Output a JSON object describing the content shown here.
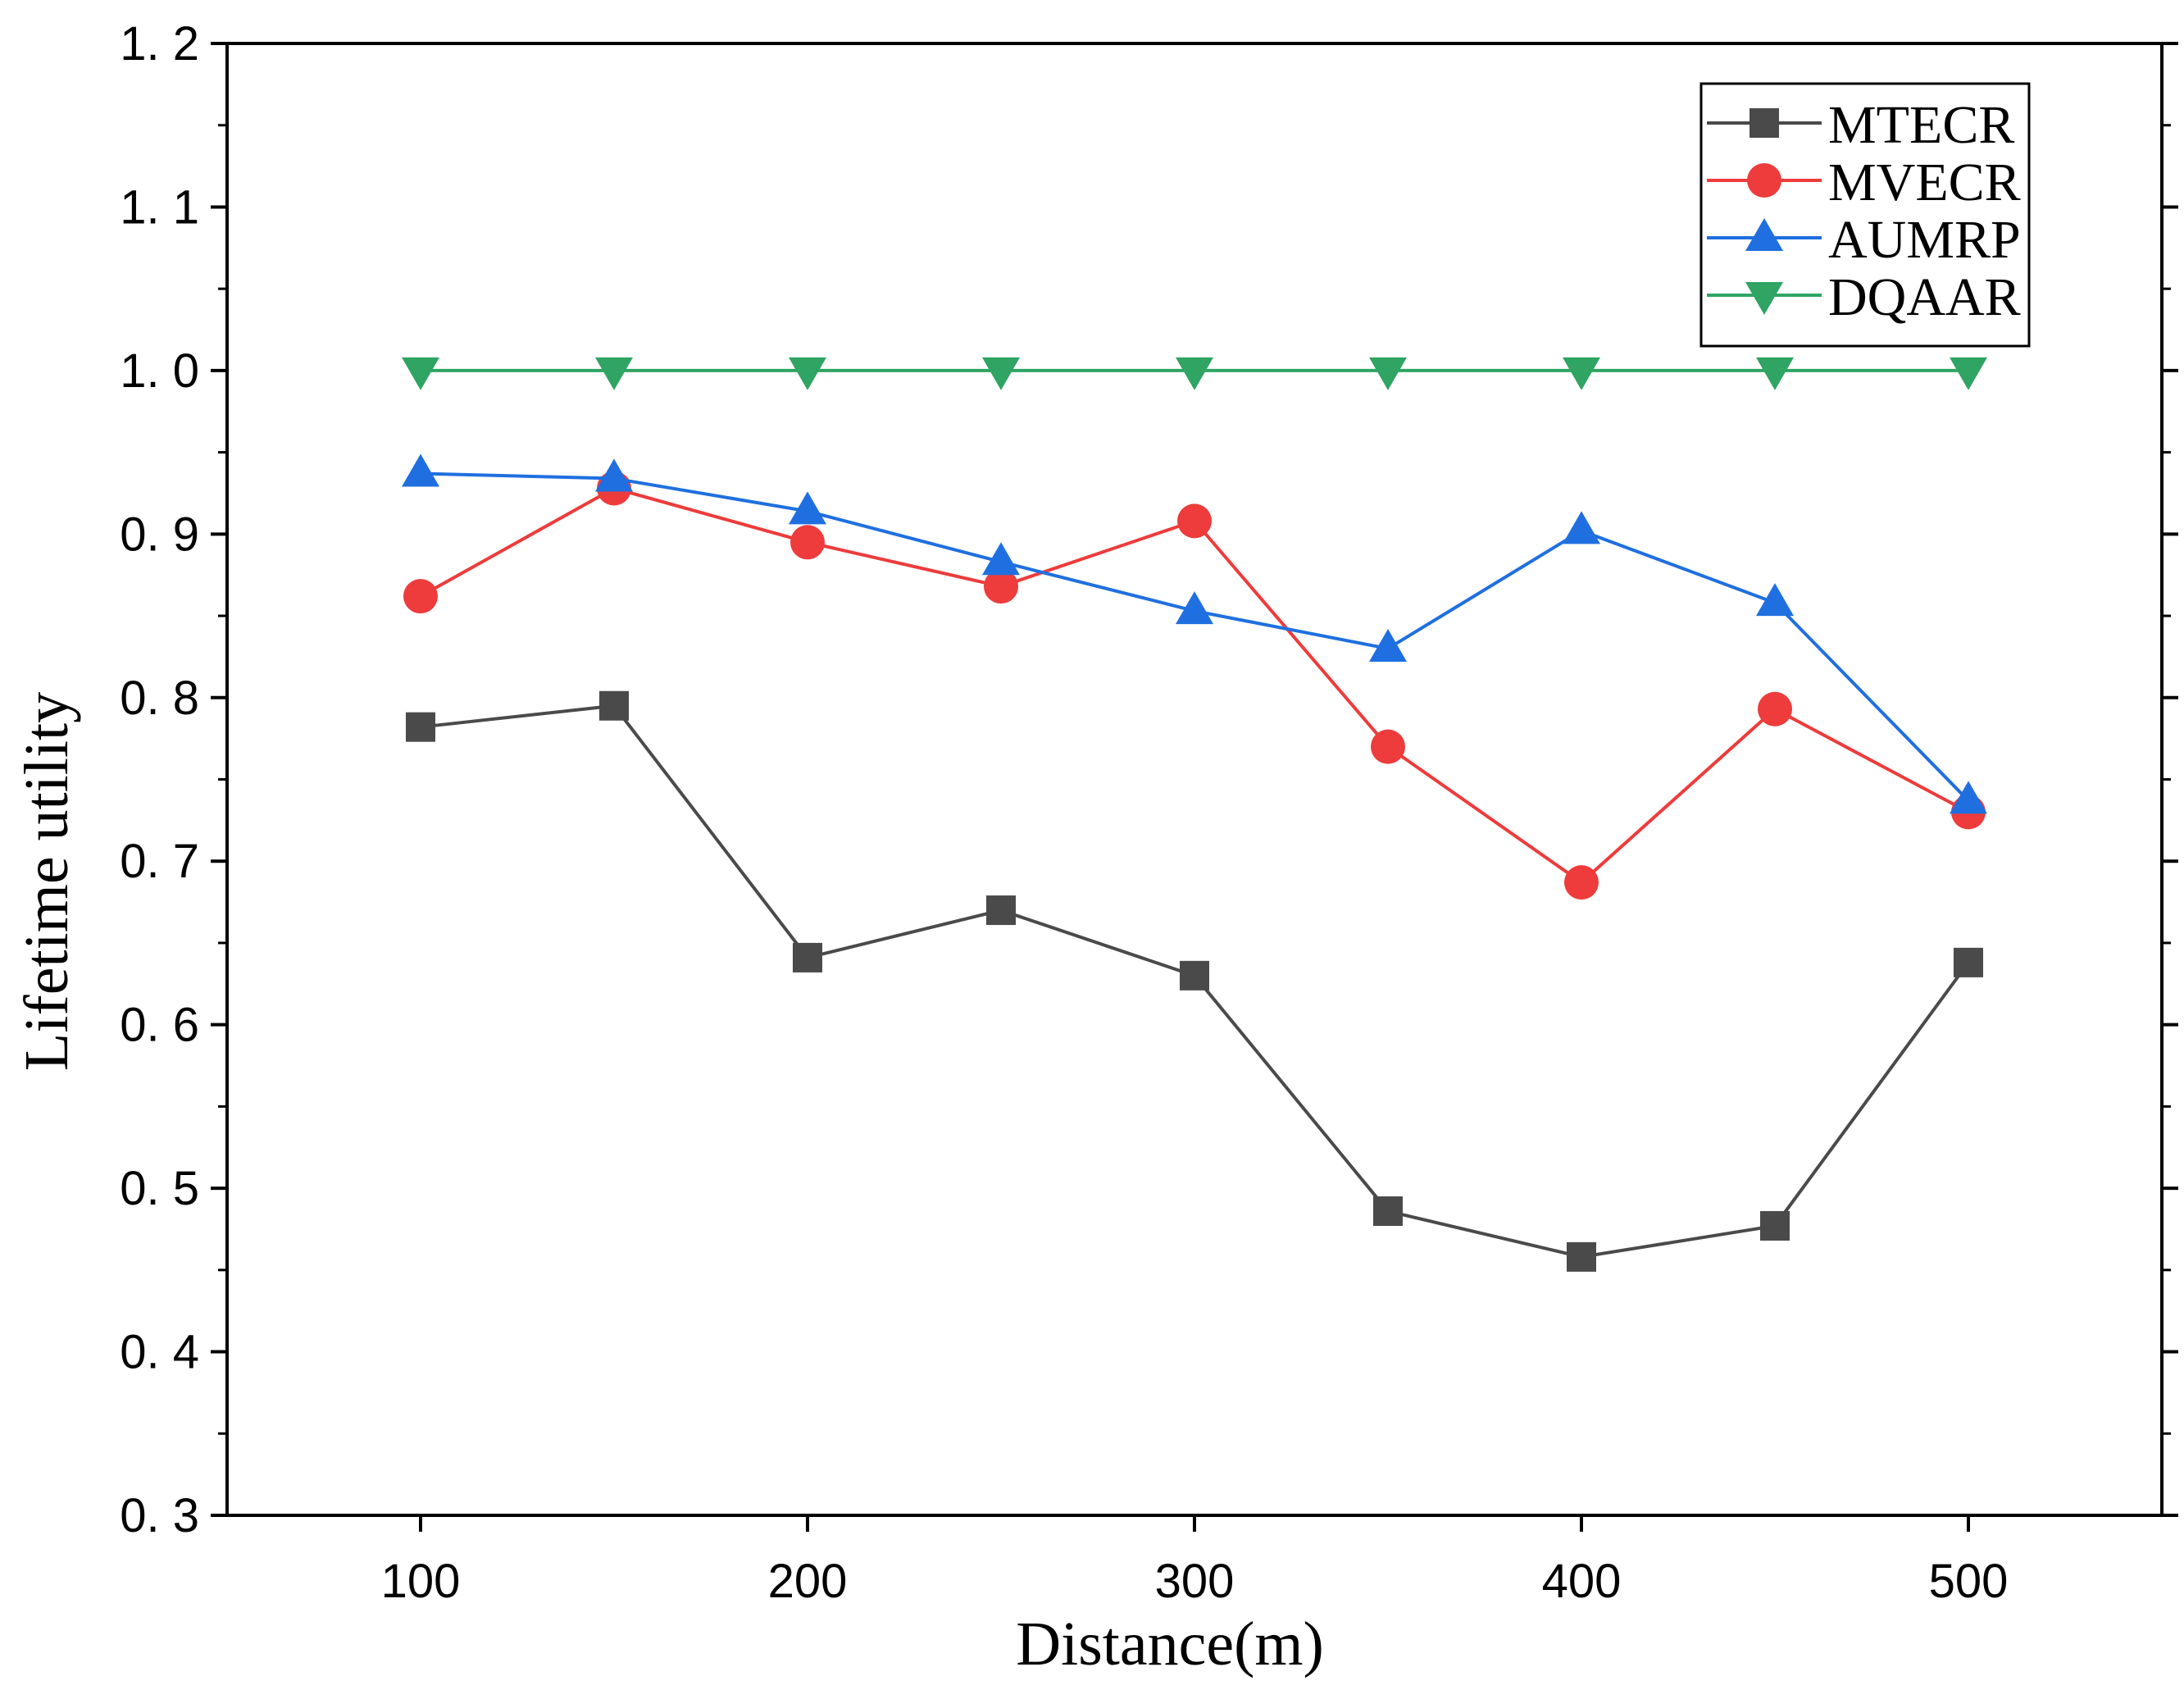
{
  "chart_data": {
    "type": "line",
    "title": "",
    "xlabel": "Distance(m)",
    "ylabel": "Lifetime  utility",
    "xlim": [
      50,
      550
    ],
    "ylim": [
      0.3,
      1.2
    ],
    "x_ticks": [
      100,
      200,
      300,
      400,
      500
    ],
    "x_tick_labels": [
      "100",
      "200",
      "300",
      "400",
      "500"
    ],
    "y_ticks": [
      0.3,
      0.4,
      0.5,
      0.6,
      0.7,
      0.8,
      0.9,
      1.0,
      1.1,
      1.2
    ],
    "y_tick_labels": [
      "0. 3",
      "0. 4",
      "0. 5",
      "0. 6",
      "0. 7",
      "0. 8",
      "0. 9",
      "1. 0",
      "1. 1",
      "1. 2"
    ],
    "grid": false,
    "legend_position": "top-right",
    "x": [
      100,
      150,
      200,
      250,
      300,
      350,
      400,
      450,
      500
    ],
    "series": [
      {
        "name": "MTECR",
        "color": "#4a4a4a",
        "marker": "square",
        "values": [
          0.782,
          0.795,
          0.641,
          0.67,
          0.63,
          0.486,
          0.458,
          0.477,
          0.638
        ]
      },
      {
        "name": "MVECR",
        "color": "#ee3b3b",
        "marker": "circle",
        "values": [
          0.862,
          0.928,
          0.895,
          0.868,
          0.908,
          0.77,
          0.687,
          0.793,
          0.73
        ]
      },
      {
        "name": "AUMRP",
        "color": "#1f6fe0",
        "marker": "triangle-up",
        "values": [
          0.937,
          0.934,
          0.914,
          0.883,
          0.853,
          0.83,
          0.902,
          0.858,
          0.737
        ]
      },
      {
        "name": "DQAAR",
        "color": "#2fa463",
        "marker": "triangle-down",
        "values": [
          1.0,
          1.0,
          1.0,
          1.0,
          1.0,
          1.0,
          1.0,
          1.0,
          1.0
        ]
      }
    ]
  }
}
